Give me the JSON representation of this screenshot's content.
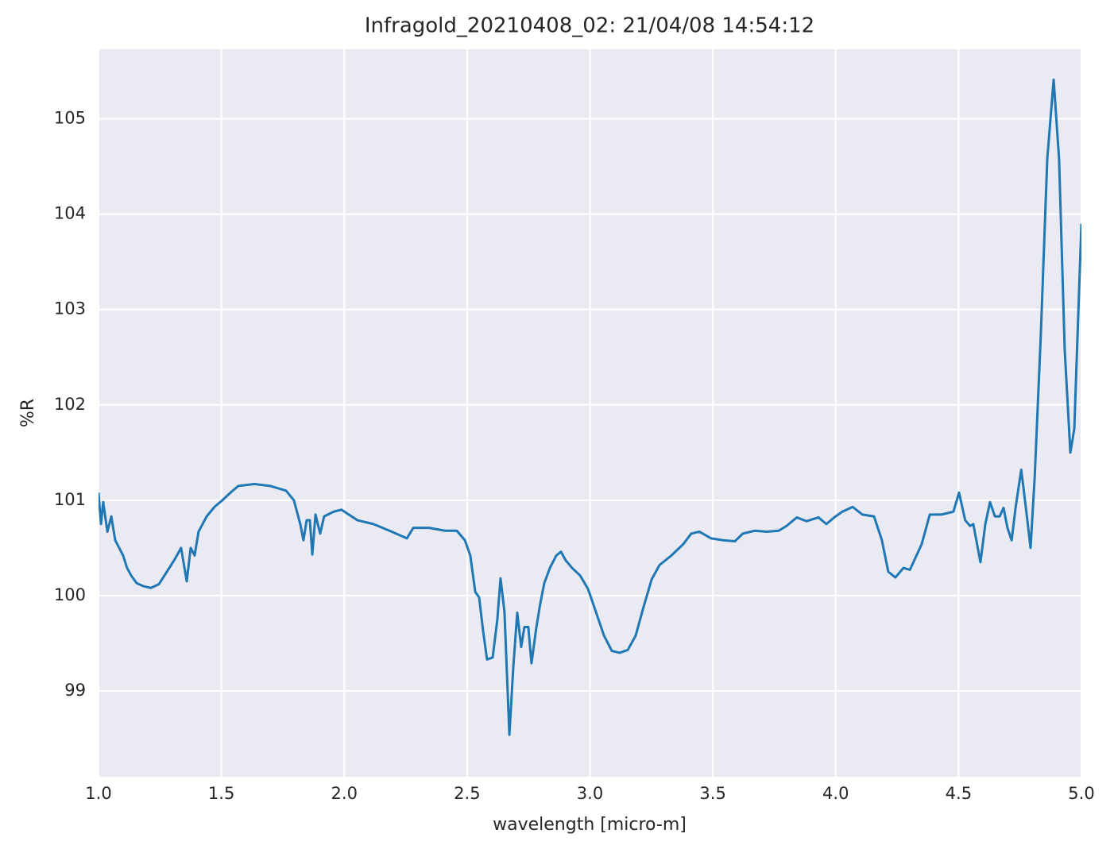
{
  "chart_data": {
    "type": "line",
    "title": "Infragold_20210408_02:  21/04/08 14:54:12",
    "xlabel": "wavelength [micro-m]",
    "ylabel": "%R",
    "xlim": [
      1,
      5
    ],
    "ylim": [
      98.1,
      105.73
    ],
    "xticks": [
      {
        "value": 1,
        "label": "1.0"
      },
      1.5,
      {
        "value": 2,
        "label": "2.0"
      },
      2.5,
      {
        "value": 3,
        "label": "3.0"
      },
      3.5,
      {
        "value": 4,
        "label": "4.0"
      },
      4.5,
      {
        "value": 5,
        "label": "5.0"
      }
    ],
    "yticks": [
      99,
      100,
      101,
      102,
      103,
      104,
      105
    ],
    "grid": true,
    "x": [
      1.0,
      1.01,
      1.019,
      1.036,
      1.052,
      1.068,
      1.084,
      1.1,
      1.116,
      1.133,
      1.155,
      1.181,
      1.213,
      1.246,
      1.278,
      1.31,
      1.336,
      1.359,
      1.375,
      1.391,
      1.407,
      1.44,
      1.472,
      1.504,
      1.537,
      1.569,
      1.634,
      1.698,
      1.763,
      1.795,
      1.821,
      1.834,
      1.847,
      1.86,
      1.87,
      1.883,
      1.902,
      1.918,
      1.957,
      1.989,
      2.054,
      2.119,
      2.184,
      2.255,
      2.281,
      2.345,
      2.41,
      2.458,
      2.491,
      2.513,
      2.533,
      2.549,
      2.565,
      2.581,
      2.604,
      2.623,
      2.636,
      2.652,
      2.672,
      2.688,
      2.704,
      2.72,
      2.733,
      2.749,
      2.762,
      2.782,
      2.798,
      2.814,
      2.837,
      2.863,
      2.882,
      2.901,
      2.927,
      2.96,
      2.992,
      3.024,
      3.057,
      3.089,
      3.121,
      3.154,
      3.186,
      3.218,
      3.251,
      3.283,
      3.331,
      3.38,
      3.412,
      3.445,
      3.493,
      3.542,
      3.59,
      3.622,
      3.671,
      3.719,
      3.768,
      3.8,
      3.842,
      3.881,
      3.93,
      3.962,
      3.994,
      4.027,
      4.069,
      4.108,
      4.156,
      4.188,
      4.214,
      4.243,
      4.276,
      4.302,
      4.35,
      4.383,
      4.431,
      4.479,
      4.502,
      4.527,
      4.547,
      4.56,
      4.589,
      4.609,
      4.628,
      4.648,
      4.667,
      4.683,
      4.699,
      4.716,
      4.732,
      4.755,
      4.774,
      4.793,
      4.81,
      4.835,
      4.861,
      4.887,
      4.909,
      4.932,
      4.955,
      4.971,
      5.0
    ],
    "series": [
      {
        "color": "#1f77b4",
        "values": [
          101.08,
          100.75,
          100.98,
          100.67,
          100.83,
          100.58,
          100.5,
          100.42,
          100.29,
          100.21,
          100.13,
          100.1,
          100.08,
          100.12,
          100.25,
          100.38,
          100.5,
          100.15,
          100.5,
          100.42,
          100.67,
          100.83,
          100.93,
          101.0,
          101.08,
          101.15,
          101.17,
          101.15,
          101.1,
          101.0,
          100.75,
          100.58,
          100.79,
          100.79,
          100.43,
          100.85,
          100.65,
          100.83,
          100.88,
          100.9,
          100.79,
          100.75,
          100.68,
          100.6,
          100.71,
          100.71,
          100.68,
          100.68,
          100.58,
          100.42,
          100.04,
          99.98,
          99.63,
          99.33,
          99.35,
          99.75,
          100.18,
          99.83,
          98.54,
          99.25,
          99.82,
          99.46,
          99.67,
          99.67,
          99.29,
          99.67,
          99.92,
          100.13,
          100.29,
          100.42,
          100.46,
          100.37,
          100.29,
          100.21,
          100.07,
          99.83,
          99.58,
          99.42,
          99.4,
          99.43,
          99.58,
          99.88,
          100.17,
          100.32,
          100.42,
          100.54,
          100.65,
          100.67,
          100.6,
          100.58,
          100.57,
          100.65,
          100.68,
          100.67,
          100.68,
          100.73,
          100.82,
          100.78,
          100.82,
          100.75,
          100.82,
          100.88,
          100.93,
          100.85,
          100.83,
          100.58,
          100.25,
          100.19,
          100.29,
          100.27,
          100.54,
          100.85,
          100.85,
          100.88,
          101.08,
          100.79,
          100.73,
          100.75,
          100.35,
          100.75,
          100.98,
          100.83,
          100.83,
          100.92,
          100.71,
          100.58,
          100.92,
          101.32,
          100.92,
          100.5,
          101.25,
          102.75,
          104.58,
          105.41,
          104.58,
          102.58,
          101.5,
          101.75,
          103.9
        ]
      }
    ]
  }
}
